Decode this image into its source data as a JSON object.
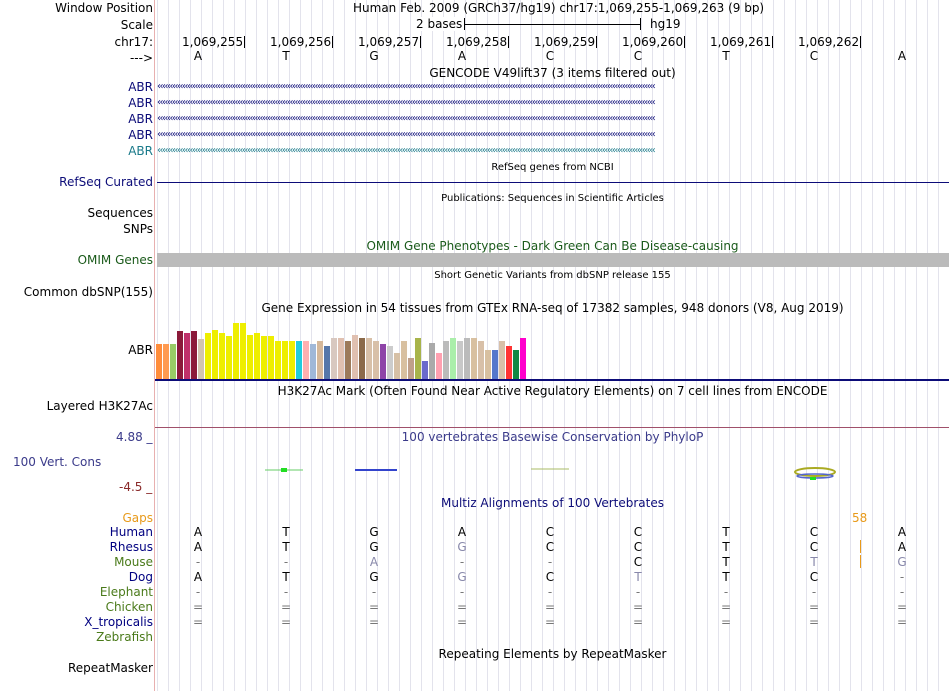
{
  "header": {
    "window_position_label": "Window Position",
    "assembly": "Human Feb. 2009 (GRCh37/hg19)   chr17:1,069,255-1,069,263 (9 bp)",
    "scale_label": "Scale",
    "scale_bases": "2 bases",
    "scale_assembly": "hg19",
    "chrom_label": "chr17:",
    "strand_label": "--->"
  },
  "ruler": {
    "positions": [
      "1,069,255",
      "1,069,256",
      "1,069,257",
      "1,069,258",
      "1,069,259",
      "1,069,260",
      "1,069,261",
      "1,069,262"
    ],
    "bases": [
      "A",
      "T",
      "G",
      "A",
      "C",
      "C",
      "T",
      "C",
      "A"
    ]
  },
  "gencode": {
    "title": "GENCODE V49lift37 (3 items filtered out)",
    "genes": [
      "ABR",
      "ABR",
      "ABR",
      "ABR",
      "ABR"
    ],
    "arrows": "‹‹‹‹‹‹‹‹‹‹‹‹‹‹‹‹‹‹‹‹‹‹‹‹‹‹‹‹‹‹‹‹‹‹‹‹‹‹‹‹‹‹‹‹‹‹‹‹‹‹‹‹‹‹‹‹‹‹‹‹‹‹‹‹‹‹‹‹‹‹‹‹‹‹‹‹‹‹‹‹‹‹‹‹‹‹‹‹‹‹‹‹‹‹‹‹‹‹‹‹‹‹‹‹‹‹‹‹‹‹‹‹‹‹‹‹‹‹‹‹‹‹‹‹‹‹‹‹‹‹‹‹‹‹‹‹‹‹‹‹‹‹‹‹‹‹‹‹‹‹‹‹‹‹‹‹‹‹‹‹‹‹‹‹‹‹‹‹‹‹‹‹‹‹‹‹‹‹‹‹‹‹‹‹‹‹‹‹‹‹‹‹‹‹‹‹‹‹‹"
  },
  "refseq": {
    "title": "RefSeq genes from NCBI",
    "label": "RefSeq Curated"
  },
  "publications": {
    "title": "Publications: Sequences in Scientific Articles",
    "label": "Sequences"
  },
  "snps": {
    "label": "SNPs"
  },
  "omim": {
    "title": "OMIM Gene Phenotypes - Dark Green Can Be Disease-causing",
    "label": "OMIM Genes"
  },
  "dbsnp": {
    "title": "Short Genetic Variants from dbSNP release 155",
    "label": "Common dbSNP(155)"
  },
  "gtex": {
    "title": "Gene Expression in 54 tissues from GTEx RNA-seq of 17382 samples, 948 donors (V8, Aug 2019)",
    "label": "ABR",
    "bars": [
      {
        "v": 0.55,
        "c": "#ff8c3a"
      },
      {
        "v": 0.55,
        "c": "#ff9a50"
      },
      {
        "v": 0.55,
        "c": "#99cc66"
      },
      {
        "v": 0.75,
        "c": "#8b1a3a"
      },
      {
        "v": 0.72,
        "c": "#c0306a"
      },
      {
        "v": 0.75,
        "c": "#8b1a3a"
      },
      {
        "v": 0.62,
        "c": "#d2c4b0"
      },
      {
        "v": 0.72,
        "c": "#eeee00"
      },
      {
        "v": 0.77,
        "c": "#eeee00"
      },
      {
        "v": 0.72,
        "c": "#eeee00"
      },
      {
        "v": 0.67,
        "c": "#eeee00"
      },
      {
        "v": 0.87,
        "c": "#eeee00"
      },
      {
        "v": 0.87,
        "c": "#eeee00"
      },
      {
        "v": 0.69,
        "c": "#eeee00"
      },
      {
        "v": 0.72,
        "c": "#eeee00"
      },
      {
        "v": 0.67,
        "c": "#eeee00"
      },
      {
        "v": 0.67,
        "c": "#eeee00"
      },
      {
        "v": 0.59,
        "c": "#eeee00"
      },
      {
        "v": 0.59,
        "c": "#eeee00"
      },
      {
        "v": 0.59,
        "c": "#eeee00"
      },
      {
        "v": 0.59,
        "c": "#22ccdd"
      },
      {
        "v": 0.59,
        "c": "#ffb0b0"
      },
      {
        "v": 0.54,
        "c": "#a0b8d8"
      },
      {
        "v": 0.59,
        "c": "#d5b89a"
      },
      {
        "v": 0.51,
        "c": "#5577aa"
      },
      {
        "v": 0.64,
        "c": "#d8c8c0"
      },
      {
        "v": 0.64,
        "c": "#e0c0b0"
      },
      {
        "v": 0.59,
        "c": "#9c7a5a"
      },
      {
        "v": 0.69,
        "c": "#e0c0b0"
      },
      {
        "v": 0.64,
        "c": "#8b6a4a"
      },
      {
        "v": 0.64,
        "c": "#d8c0a8"
      },
      {
        "v": 0.59,
        "c": "#d8c0a8"
      },
      {
        "v": 0.54,
        "c": "#8e44a8"
      },
      {
        "v": 0.51,
        "c": "#cccccc"
      },
      {
        "v": 0.41,
        "c": "#d6c0a6"
      },
      {
        "v": 0.59,
        "c": "#d8c0a0"
      },
      {
        "v": 0.33,
        "c": "#c0a08a"
      },
      {
        "v": 0.64,
        "c": "#a8b44a"
      },
      {
        "v": 0.28,
        "c": "#6a6acc"
      },
      {
        "v": 0.56,
        "c": "#aaaaaa"
      },
      {
        "v": 0.41,
        "c": "#ffa0b0"
      },
      {
        "v": 0.59,
        "c": "#bbbbbb"
      },
      {
        "v": 0.64,
        "c": "#aaeeaa"
      },
      {
        "v": 0.59,
        "c": "#c8c8c8"
      },
      {
        "v": 0.64,
        "c": "#bbbbbb"
      },
      {
        "v": 0.64,
        "c": "#d8c0a0"
      },
      {
        "v": 0.59,
        "c": "#d8c0a8"
      },
      {
        "v": 0.46,
        "c": "#d8c0a0"
      },
      {
        "v": 0.46,
        "c": "#5577cc"
      },
      {
        "v": 0.59,
        "c": "#d8c0a8"
      },
      {
        "v": 0.51,
        "c": "#ff3333"
      },
      {
        "v": 0.46,
        "c": "#118844"
      },
      {
        "v": 0.64,
        "c": "#ff00cc"
      },
      {
        "v": 0.0,
        "c": "#ffffff"
      }
    ]
  },
  "h3k27ac": {
    "title": "H3K27Ac Mark (Often Found Near Active Regulatory Elements) on 7 cell lines from ENCODE",
    "label": "Layered H3K27Ac"
  },
  "phylop": {
    "title": "100 vertebrates Basewise Conservation by PhyloP",
    "label": "100 Vert. Cons",
    "max_label": "4.88 _",
    "min_label": "-4.5 _"
  },
  "multiz": {
    "title": "Multiz Alignments of 100 Vertebrates",
    "gaps_label": "Gaps",
    "gap_count": "58",
    "species": [
      {
        "name": "Human",
        "color": "#000080",
        "bases": [
          "A",
          "T",
          "G",
          "A",
          "C",
          "C",
          "T",
          "C",
          "A"
        ]
      },
      {
        "name": "Rhesus",
        "color": "#000080",
        "bases": [
          "A",
          "T",
          "G",
          "G",
          "C",
          "C",
          "T",
          "C",
          "A"
        ]
      },
      {
        "name": "Mouse",
        "color": "#4a7a1a",
        "bases": [
          "-",
          "-",
          "A",
          "-",
          "-",
          "C",
          "T",
          "T",
          "G"
        ]
      },
      {
        "name": "Dog",
        "color": "#000080",
        "bases": [
          "A",
          "T",
          "G",
          "G",
          "C",
          "T",
          "T",
          "C",
          "-"
        ]
      },
      {
        "name": "Elephant",
        "color": "#4a7a1a",
        "bases": [
          "-",
          "-",
          "-",
          "-",
          "-",
          "-",
          "-",
          "-",
          "-"
        ]
      },
      {
        "name": "Chicken",
        "color": "#4a7a1a",
        "bases": [
          "=",
          "=",
          "=",
          "=",
          "=",
          "=",
          "=",
          "=",
          "="
        ]
      },
      {
        "name": "X_tropicalis",
        "color": "#000080",
        "bases": [
          "=",
          "=",
          "=",
          "=",
          "=",
          "=",
          "=",
          "=",
          "="
        ]
      },
      {
        "name": "Zebrafish",
        "color": "#4a7a1a",
        "bases": [
          "",
          "",
          "",
          "",
          "",
          "",
          "",
          "",
          ""
        ]
      }
    ]
  },
  "repeatmasker": {
    "title": "Repeating Elements by RepeatMasker",
    "label": "RepeatMasker"
  }
}
